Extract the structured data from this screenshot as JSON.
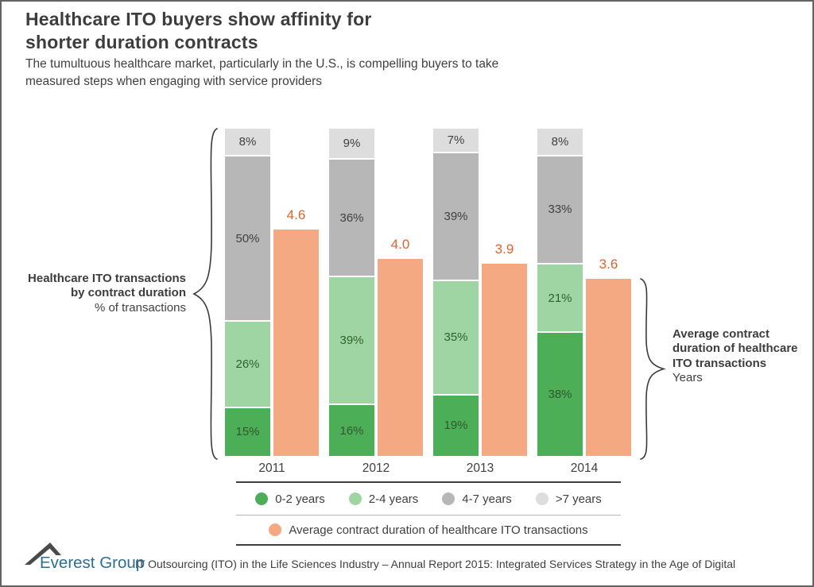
{
  "page": {
    "title": "Healthcare ITO buyers show affinity for\nshorter duration contracts",
    "subtitle": "The tumultuous healthcare market, particularly in the U.S., is compelling buyers to take\nmeasured steps when engaging with service providers"
  },
  "left_label": {
    "bold": "Healthcare ITO transactions\nby contract duration",
    "unit": "% of transactions"
  },
  "right_label": {
    "bold": "Average contract\nduration of healthcare\nITO transactions",
    "unit": "Years"
  },
  "legend": {
    "avg_label": "Average contract duration of healthcare ITO transactions"
  },
  "footer": {
    "brand": "Everest Group",
    "text": "IT Outsourcing (ITO) in the Life Sciences Industry – Annual Report 2015: Integrated Services Strategy in the Age of Digital"
  },
  "colors": {
    "frame": "#636363",
    "text_dark": "#404040",
    "brace": "#3a3a3a",
    "brand_blue": "#2e6d96",
    "logo_peak": "#4a4a4a"
  },
  "chart_data": {
    "type": "bar",
    "subtype": "stacked-percent-columns with companion average-value columns",
    "categories": [
      "2011",
      "2012",
      "2013",
      "2014"
    ],
    "series": [
      {
        "name": "0-2 years",
        "color": "#4CAE57",
        "label_color": "#31572F",
        "unit": "%",
        "values": [
          15,
          16,
          19,
          38
        ]
      },
      {
        "name": "2-4 years",
        "color": "#9FD4A3",
        "label_color": "#31612F",
        "unit": "%",
        "values": [
          26,
          39,
          35,
          21
        ]
      },
      {
        "name": "4-7 years",
        "color": "#B7B7B7",
        "label_color": "#404040",
        "unit": "%",
        "values": [
          50,
          36,
          39,
          33
        ]
      },
      {
        "name": ">7 years",
        "color": "#DDDDDD",
        "label_color": "#404040",
        "unit": "%",
        "values": [
          8,
          9,
          7,
          8
        ]
      }
    ],
    "avg_series": {
      "name": "Average contract duration of healthcare ITO transactions",
      "color": "#F5A983",
      "value_label_color": "#E2622D",
      "unit": "years",
      "values": [
        4.6,
        4.0,
        3.9,
        3.6
      ],
      "display": [
        "4.6",
        "4.0",
        "3.9",
        "3.6"
      ]
    },
    "left_axis": {
      "title": "Healthcare ITO transactions by contract duration",
      "unit": "% of transactions",
      "range": [
        0,
        100
      ]
    },
    "right_axis": {
      "title": "Average contract duration of healthcare ITO transactions",
      "unit": "Years"
    },
    "grid": false,
    "legend_position": "bottom"
  }
}
